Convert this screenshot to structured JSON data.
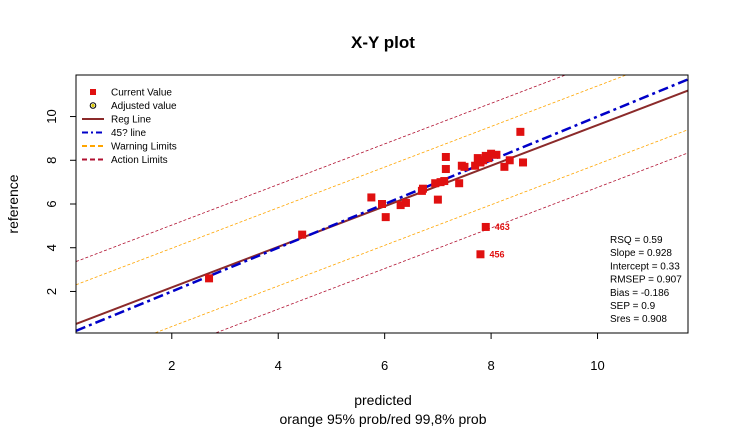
{
  "colors": {
    "current_value": "#e01010",
    "adjusted_value": "#d8c800",
    "reg_line": "#8b2a2a",
    "line_45": "#0000c8",
    "warning_limits": "#ffa500",
    "action_limits": "#b01030"
  },
  "chart_data": {
    "type": "scatter",
    "title": "X-Y plot",
    "xlabel": "predicted",
    "subtitle": "orange 95% prob/red 99,8% prob",
    "ylabel": "reference",
    "xlim": [
      0.2,
      11.7
    ],
    "ylim": [
      0.1,
      11.9
    ],
    "x_ticks": [
      2,
      4,
      6,
      8,
      10
    ],
    "y_ticks": [
      2,
      4,
      6,
      8,
      10
    ],
    "grid": false,
    "legend_position": "top-left",
    "legend": [
      {
        "label": "Current Value",
        "kind": "square",
        "color": "current_value"
      },
      {
        "label": "Adjusted value",
        "kind": "circle",
        "color": "adjusted_value"
      },
      {
        "label": "Reg Line",
        "kind": "solid",
        "color": "reg_line"
      },
      {
        "label": "45? line",
        "kind": "dashdot",
        "color": "line_45"
      },
      {
        "label": "Warning Limits",
        "kind": "dashed",
        "color": "warning_limits"
      },
      {
        "label": "Action Limits",
        "kind": "dashed",
        "color": "action_limits"
      }
    ],
    "reg_line": {
      "slope": 0.928,
      "intercept": 0.33
    },
    "line_45": {
      "slope": 1,
      "intercept": 0
    },
    "warning_limits": {
      "offsets": [
        1.79,
        -1.79
      ]
    },
    "action_limits": {
      "offsets": [
        2.85,
        -2.85
      ]
    },
    "series": [
      {
        "name": "Current Value",
        "points": [
          {
            "x": 2.7,
            "y": 2.6
          },
          {
            "x": 4.45,
            "y": 4.6
          },
          {
            "x": 5.75,
            "y": 6.3
          },
          {
            "x": 5.95,
            "y": 6.0
          },
          {
            "x": 6.02,
            "y": 5.4
          },
          {
            "x": 6.3,
            "y": 5.95
          },
          {
            "x": 6.4,
            "y": 6.05
          },
          {
            "x": 6.7,
            "y": 6.6
          },
          {
            "x": 6.72,
            "y": 6.7
          },
          {
            "x": 6.95,
            "y": 6.95
          },
          {
            "x": 7.0,
            "y": 6.2
          },
          {
            "x": 7.05,
            "y": 7.0
          },
          {
            "x": 7.12,
            "y": 7.05
          },
          {
            "x": 7.15,
            "y": 8.15
          },
          {
            "x": 7.15,
            "y": 7.6
          },
          {
            "x": 7.4,
            "y": 6.95
          },
          {
            "x": 7.45,
            "y": 7.75
          },
          {
            "x": 7.5,
            "y": 7.7
          },
          {
            "x": 7.7,
            "y": 7.75
          },
          {
            "x": 7.75,
            "y": 8.1
          },
          {
            "x": 7.8,
            "y": 7.9
          },
          {
            "x": 7.85,
            "y": 8.0
          },
          {
            "x": 7.9,
            "y": 8.2
          },
          {
            "x": 7.95,
            "y": 8.1
          },
          {
            "x": 8.0,
            "y": 8.3
          },
          {
            "x": 8.1,
            "y": 8.25
          },
          {
            "x": 8.25,
            "y": 7.7
          },
          {
            "x": 8.35,
            "y": 8.0
          },
          {
            "x": 8.55,
            "y": 9.3
          },
          {
            "x": 8.6,
            "y": 7.9
          },
          {
            "x": 7.9,
            "y": 4.95
          },
          {
            "x": 7.8,
            "y": 3.7
          }
        ]
      }
    ],
    "point_labels": [
      {
        "text": "463",
        "x": 7.9,
        "y": 4.95
      },
      {
        "text": "456",
        "x": 7.8,
        "y": 3.7
      }
    ],
    "stats": [
      "RSQ = 0.59",
      "Slope = 0.928",
      "Intercept = 0.33",
      "RMSEP = 0.907",
      "Bias = -0.186",
      "SEP = 0.9",
      "Sres = 0.908"
    ]
  }
}
